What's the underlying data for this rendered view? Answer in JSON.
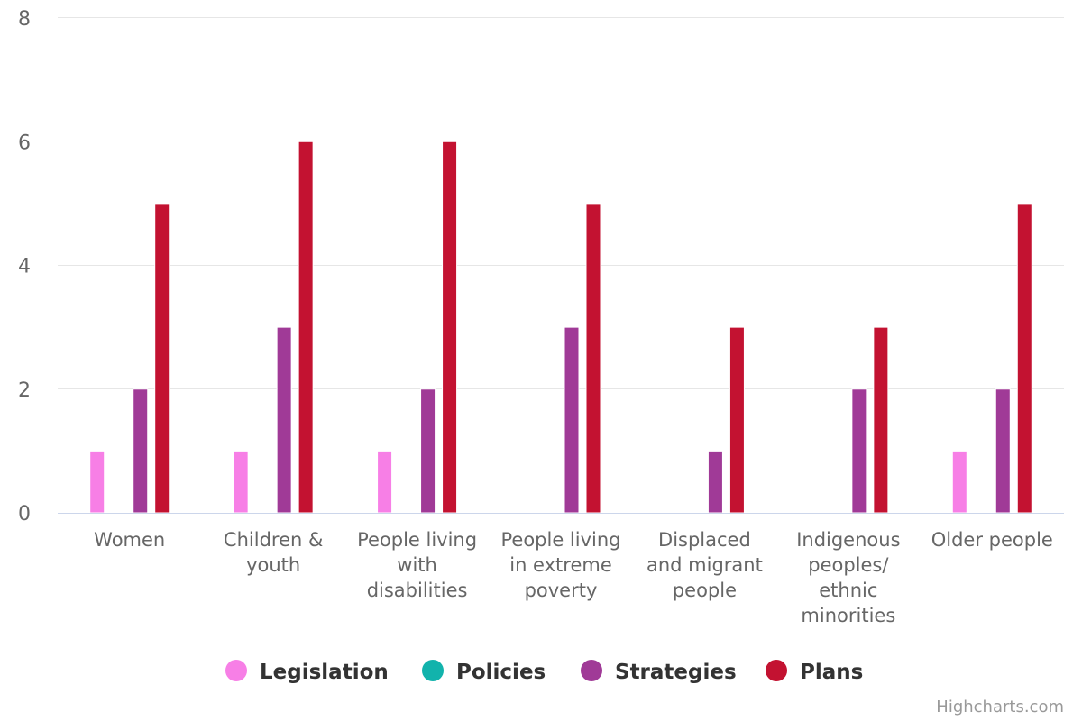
{
  "chart_data": {
    "type": "bar",
    "categories": [
      [
        "Women"
      ],
      [
        "Children &",
        "youth"
      ],
      [
        "People living",
        "with",
        "disabilities"
      ],
      [
        "People living",
        "in extreme",
        "poverty"
      ],
      [
        "Displaced",
        "and migrant",
        "people"
      ],
      [
        "Indigenous",
        "peoples/",
        "ethnic",
        "minorities"
      ],
      [
        "Older people"
      ]
    ],
    "series": [
      {
        "name": "Legislation",
        "color": "#f77fe6",
        "values": [
          1,
          1,
          1,
          0,
          0,
          0,
          1
        ]
      },
      {
        "name": "Policies",
        "color": "#12b3ac",
        "values": [
          0,
          0,
          0,
          0,
          0,
          0,
          0
        ]
      },
      {
        "name": "Strategies",
        "color": "#a03a97",
        "values": [
          2,
          3,
          2,
          3,
          1,
          2,
          2
        ]
      },
      {
        "name": "Plans",
        "color": "#c31231",
        "values": [
          5,
          6,
          6,
          5,
          3,
          3,
          5
        ]
      }
    ],
    "ylim": [
      0,
      8
    ],
    "yticks": [
      0,
      2,
      4,
      6,
      8
    ],
    "grid": true,
    "legend_position": "bottom-center",
    "credits": "Highcharts.com"
  }
}
